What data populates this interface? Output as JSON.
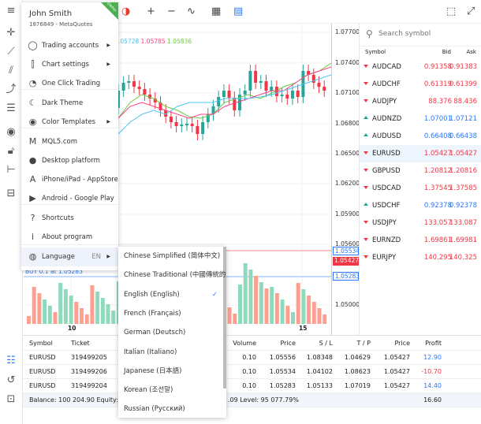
{
  "toolbar": {
    "icons": [
      "menu-icon",
      "chart-type-icon",
      "zoom-in-icon",
      "zoom-out-icon",
      "indicators-icon",
      "calendar-icon",
      "trade-icon",
      "screenshot-icon",
      "fullscreen-icon"
    ],
    "zoom_in": "+",
    "zoom_out": "−"
  },
  "left_tools": [
    "crosshair-icon",
    "line-icon",
    "channel-icon",
    "path-icon",
    "fibonacci-icon",
    "eye-icon",
    "lock-icon",
    "tree-icon",
    "layers-icon"
  ],
  "bottom_tools": [
    "trade-list-icon",
    "history-icon",
    "journal-icon"
  ],
  "chart": {
    "symbol": "EURUSD",
    "indicator_values": [
      ".05728",
      "1.05785",
      "1.05836"
    ],
    "indicator_colors": [
      "#4fc3f7",
      "#ff4081",
      "#66cc44"
    ],
    "price_ticks": [
      "1.07700",
      "1.07400",
      "1.07100",
      "1.06800",
      "1.06500",
      "1.06200",
      "1.05900",
      "1.05600",
      "1.05000"
    ],
    "time_ticks": [
      "10",
      "15"
    ],
    "price_labels": {
      "sell_line": "1.05534",
      "current": "1.05427",
      "buy_line": "1.05283"
    },
    "buy_label": "BUY 0.1 at 1.05283",
    "demo_badge": "Demo"
  },
  "watchlist": {
    "search_placeholder": "Search symbol",
    "columns": [
      "Symbol",
      "Bid",
      "Ask"
    ],
    "rows": [
      {
        "symbol": "AUDCAD",
        "bid": "0.91358",
        "ask": "0.91383",
        "dir": "down"
      },
      {
        "symbol": "AUDCHF",
        "bid": "0.61319",
        "ask": "0.61399",
        "dir": "down"
      },
      {
        "symbol": "AUDJPY",
        "bid": "88.376",
        "ask": "88.436",
        "dir": "down"
      },
      {
        "symbol": "AUDNZD",
        "bid": "1.07001",
        "ask": "1.07121",
        "dir": "up"
      },
      {
        "symbol": "AUDUSD",
        "bid": "0.66408",
        "ask": "0.66438",
        "dir": "up"
      },
      {
        "symbol": "EURUSD",
        "bid": "1.05427",
        "ask": "1.05427",
        "dir": "down",
        "selected": true
      },
      {
        "symbol": "GBPUSD",
        "bid": "1.20812",
        "ask": "1.20816",
        "dir": "down"
      },
      {
        "symbol": "USDCAD",
        "bid": "1.37545",
        "ask": "1.37585",
        "dir": "down"
      },
      {
        "symbol": "USDCHF",
        "bid": "0.92378",
        "ask": "0.92378",
        "dir": "up"
      },
      {
        "symbol": "USDJPY",
        "bid": "133.057",
        "ask": "133.087",
        "dir": "down"
      },
      {
        "symbol": "EURNZD",
        "bid": "1.69861",
        "ask": "1.69981",
        "dir": "down"
      },
      {
        "symbol": "EURJPY",
        "bid": "140.295",
        "ask": "140.325",
        "dir": "down"
      }
    ]
  },
  "trades": {
    "columns": [
      "Symbol",
      "Ticket",
      "Volume",
      "Price",
      "S / L",
      "T / P",
      "Price",
      "Profit"
    ],
    "rows": [
      {
        "symbol": "EURUSD",
        "ticket": "319499205",
        "volume": "0.10",
        "price": "1.05556",
        "sl": "1.08348",
        "tp": "1.04629",
        "cur": "1.05427",
        "profit": "12.90",
        "pos": true
      },
      {
        "symbol": "EURUSD",
        "ticket": "319499206",
        "volume": "0.10",
        "price": "1.05534",
        "sl": "1.04102",
        "tp": "1.08623",
        "cur": "1.05427",
        "profit": "-10.70",
        "pos": false
      },
      {
        "symbol": "EURUSD",
        "ticket": "319499204",
        "volume": "0.10",
        "price": "1.05283",
        "sl": "1.05133",
        "tp": "1.07019",
        "cur": "1.05427",
        "profit": "14.40",
        "pos": true
      }
    ],
    "summary_left": "Balance: 100 204.90  Equity: 10",
    "summary_mid": ".09  Level: 95 077.79%",
    "total_profit": "16.60"
  },
  "menu": {
    "user_name": "John Smith",
    "account": "1876849 - MetaQuotes",
    "items": [
      {
        "label": "Trading accounts",
        "icon": "user-circle-icon",
        "glyph": "◯",
        "arrow": true
      },
      {
        "label": "Chart settings",
        "icon": "candles-icon",
        "glyph": "⫿",
        "arrow": true
      },
      {
        "label": "One Click Trading",
        "icon": "one-click-icon",
        "glyph": "◔"
      },
      {
        "label": "Dark Theme",
        "icon": "moon-icon",
        "glyph": "☾"
      },
      {
        "label": "Color Templates",
        "icon": "palette-icon",
        "glyph": "◉",
        "arrow": true
      },
      {
        "label": "MQL5.com",
        "icon": "mql5-icon",
        "glyph": "M"
      },
      {
        "label": "Desktop platform",
        "icon": "desktop-icon",
        "glyph": "●"
      },
      {
        "label": "iPhone/iPad - AppStore",
        "icon": "appstore-icon",
        "glyph": "A"
      },
      {
        "label": "Android - Google Play",
        "icon": "google-play-icon",
        "glyph": "▶"
      },
      {
        "label": "Shortcuts",
        "icon": "question-icon",
        "glyph": "?"
      },
      {
        "label": "About program",
        "icon": "info-icon",
        "glyph": "i"
      },
      {
        "label": "Language",
        "icon": "globe-icon",
        "glyph": "◍",
        "arrow": true,
        "value": "EN"
      }
    ]
  },
  "languages": {
    "items": [
      "Chinese Simplified (简体中文)",
      "Chinese Traditional (中國傳統的)",
      "English (English)",
      "French (Français)",
      "German (Deutsch)",
      "Italian (Italiano)",
      "Japanese (日本語)",
      "Korean (조선말)",
      "Russian (Русский)"
    ],
    "selected": "English (English)"
  },
  "colors": {
    "up": "#26a69a",
    "down": "#f23645",
    "bid_up": "#2979ff",
    "accent": "#2979ff"
  }
}
